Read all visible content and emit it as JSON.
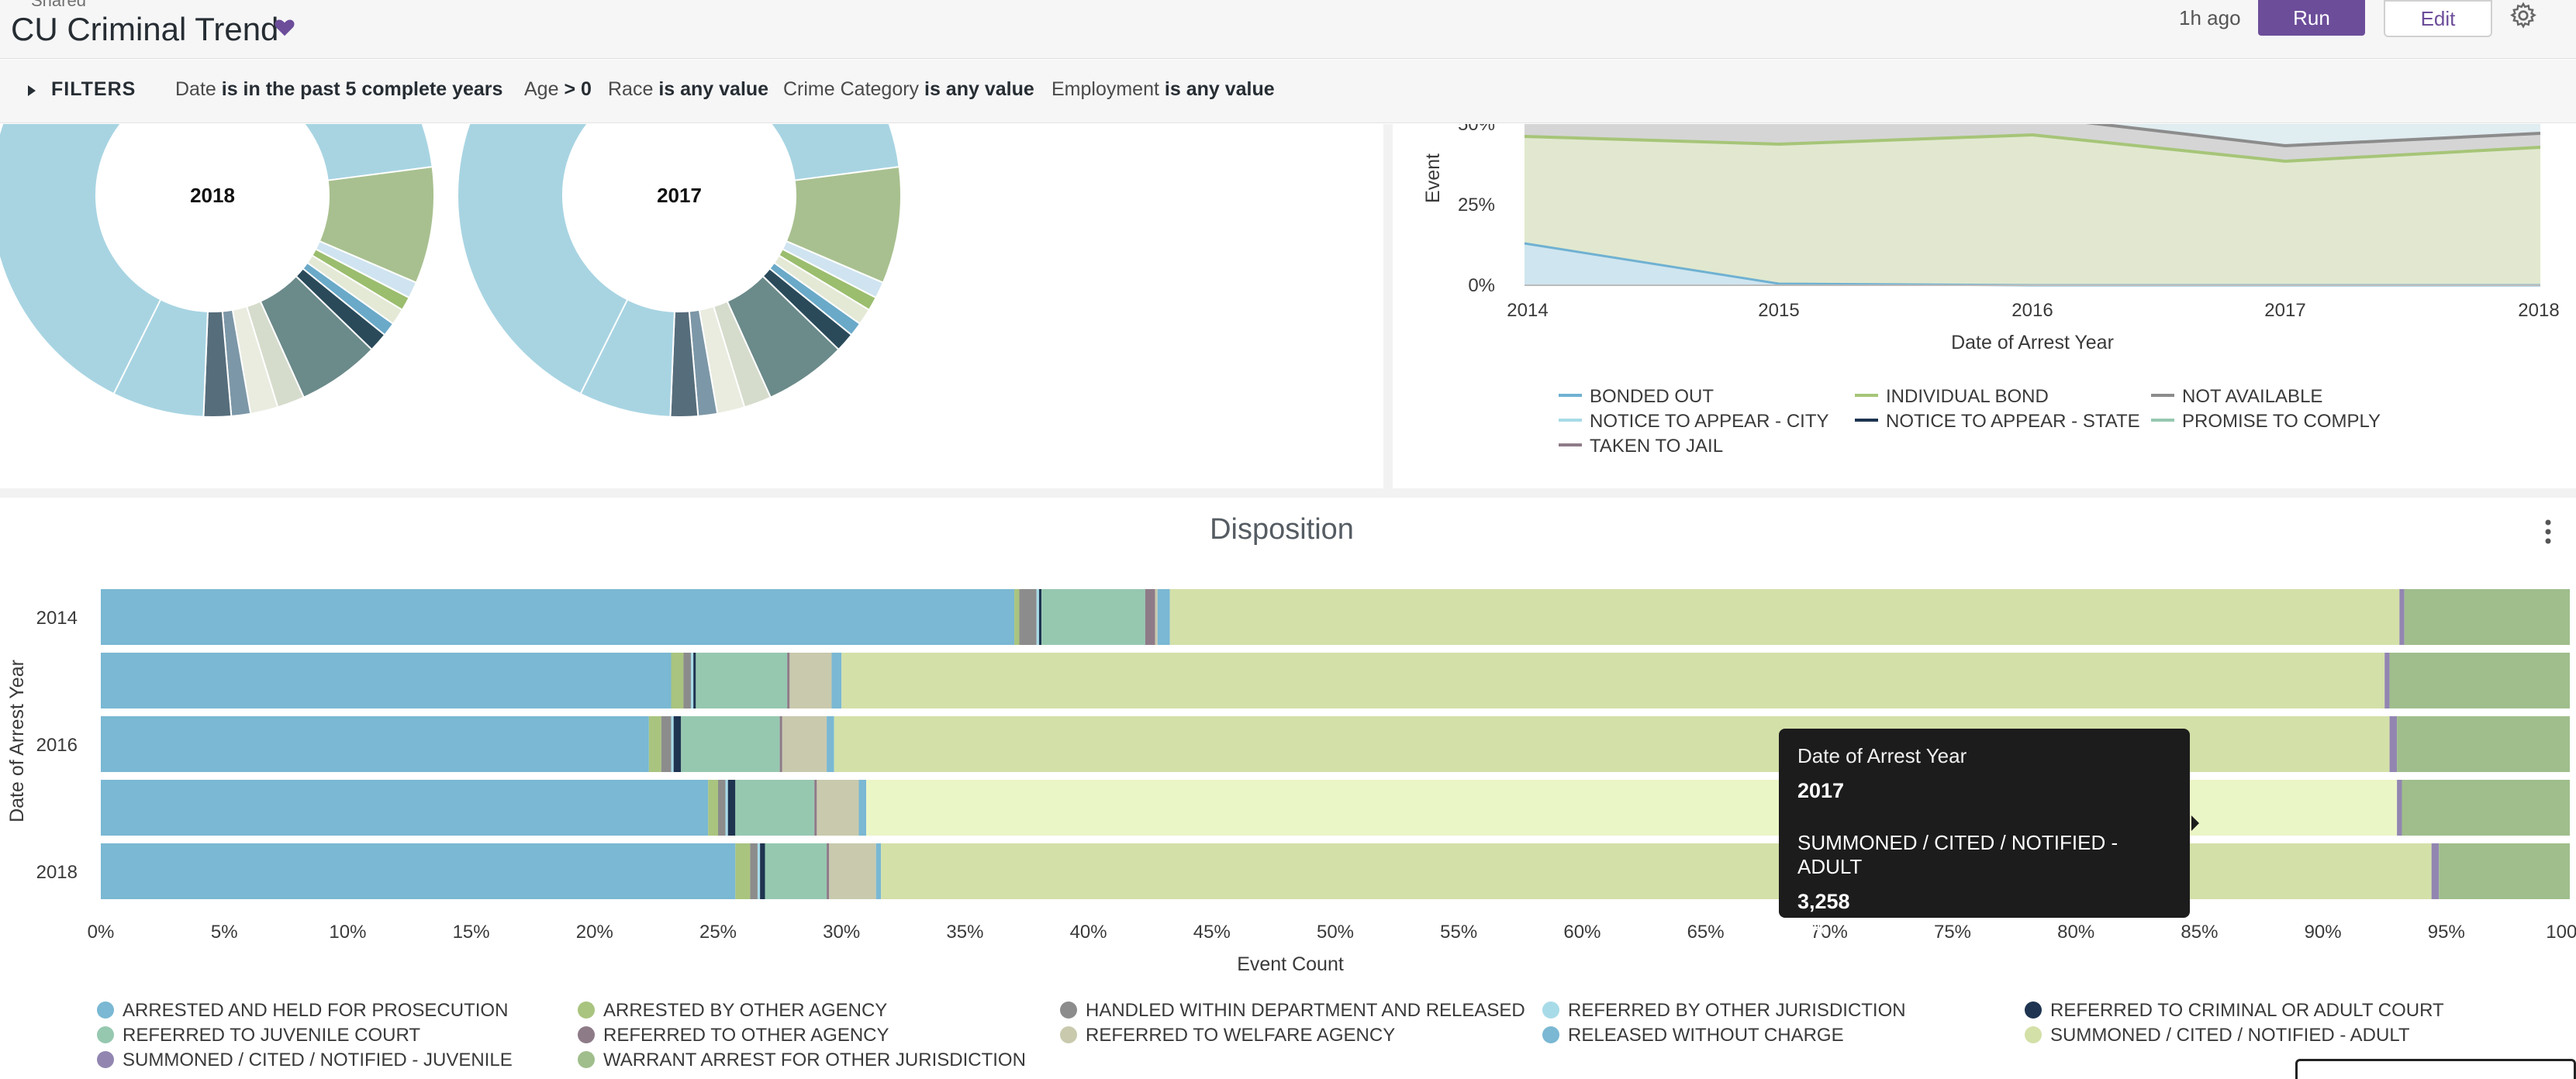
{
  "header": {
    "shared": "Shared",
    "title": "CU Criminal Trend",
    "updated": "1h ago",
    "run_label": "Run",
    "edit_label": "Edit"
  },
  "filters": {
    "toggle_label": "FILTERS",
    "items": [
      {
        "name": "Date",
        "value": "is in the past 5 complete years"
      },
      {
        "name": "Age",
        "value": "> 0"
      },
      {
        "name": "Race",
        "value": "is any value"
      },
      {
        "name": "Crime Category",
        "value": "is any value"
      },
      {
        "name": "Employment",
        "value": "is any value"
      }
    ]
  },
  "colors": {
    "accent": "#6c4d9a",
    "arrested_held": "#7ab8d3",
    "arrested_other": "#a9c47f",
    "handled_released": "#8c8c8c",
    "referred_jurisdiction": "#a8dbe8",
    "referred_criminal": "#1e3450",
    "referred_juvenile": "#96c8b0",
    "referred_other": "#8e7b88",
    "referred_welfare": "#c9c9ad",
    "released_no_charge": "#7ab8d3",
    "summoned_adult": "#d3e0a8",
    "summoned_juvenile": "#9286b1",
    "warrant_arrest": "#a0be8c"
  },
  "donuts": [
    {
      "label": "2018"
    },
    {
      "label": "2017"
    }
  ],
  "area_chart": {
    "y_title": "Event",
    "x_title": "Date of Arrest Year",
    "x_ticks": [
      "2014",
      "2015",
      "2016",
      "2017",
      "2018"
    ],
    "y_ticks": [
      "0%",
      "25%",
      "50%"
    ],
    "legend": [
      {
        "label": "BONDED OUT",
        "color": "#6fb1d2"
      },
      {
        "label": "INDIVIDUAL BOND",
        "color": "#a6c578"
      },
      {
        "label": "NOT AVAILABLE",
        "color": "#8c8c8c"
      },
      {
        "label": "NOTICE TO APPEAR - CITY",
        "color": "#a8dbe8"
      },
      {
        "label": "NOTICE TO APPEAR - STATE",
        "color": "#1e3450"
      },
      {
        "label": "PROMISE TO COMPLY",
        "color": "#96c8b0"
      },
      {
        "label": "TAKEN TO JAIL",
        "color": "#8e7b88"
      }
    ]
  },
  "chart_data": {
    "type": "bar",
    "title": "Disposition",
    "xlabel": "Event Count",
    "ylabel": "Date of Arrest Year",
    "xlim": [
      0,
      100
    ],
    "x_ticks": [
      "0%",
      "5%",
      "10%",
      "15%",
      "20%",
      "25%",
      "30%",
      "35%",
      "40%",
      "45%",
      "50%",
      "55%",
      "60%",
      "65%",
      "70%",
      "75%",
      "80%",
      "85%",
      "90%",
      "95%",
      "100%"
    ],
    "y_tick_labels": [
      "2014",
      "2016",
      "2018"
    ],
    "categories": [
      "2014",
      "2015",
      "2016",
      "2017",
      "2018"
    ],
    "stacked_percent": true,
    "series": [
      {
        "name": "ARRESTED AND HELD FOR PROSECUTION",
        "values": [
          37.0,
          23.1,
          22.2,
          24.6,
          25.7
        ]
      },
      {
        "name": "ARRESTED BY OTHER AGENCY",
        "values": [
          0.2,
          0.5,
          0.5,
          0.4,
          0.6
        ]
      },
      {
        "name": "HANDLED WITHIN DEPARTMENT AND RELEASED",
        "values": [
          0.7,
          0.3,
          0.4,
          0.3,
          0.3
        ]
      },
      {
        "name": "REFERRED BY OTHER JURISDICTION",
        "values": [
          0.1,
          0.1,
          0.1,
          0.1,
          0.1
        ]
      },
      {
        "name": "REFERRED TO CRIMINAL OR ADULT COURT",
        "values": [
          0.1,
          0.1,
          0.3,
          0.3,
          0.2
        ]
      },
      {
        "name": "REFERRED TO JUVENILE COURT",
        "values": [
          4.2,
          3.7,
          4.0,
          3.2,
          2.5
        ]
      },
      {
        "name": "REFERRED TO OTHER AGENCY",
        "values": [
          0.4,
          0.1,
          0.1,
          0.1,
          0.1
        ]
      },
      {
        "name": "REFERRED TO WELFARE AGENCY",
        "values": [
          0.1,
          1.7,
          1.8,
          1.7,
          1.9
        ]
      },
      {
        "name": "RELEASED WITHOUT CHARGE",
        "values": [
          0.5,
          0.4,
          0.3,
          0.3,
          0.2
        ]
      },
      {
        "name": "SUMMONED / CITED / NOTIFIED - ADULT",
        "values": [
          49.8,
          62.5,
          63.0,
          62.0,
          62.8
        ]
      },
      {
        "name": "SUMMONED / CITED / NOTIFIED - JUVENILE",
        "values": [
          0.2,
          0.2,
          0.3,
          0.2,
          0.3
        ]
      },
      {
        "name": "WARRANT ARREST FOR OTHER JURISDICTION",
        "values": [
          6.7,
          7.3,
          7.0,
          6.8,
          5.3
        ]
      }
    ],
    "tooltip": {
      "field": "Date of Arrest Year",
      "year": "2017",
      "series": "SUMMONED / CITED / NOTIFIED - ADULT",
      "count": "3,258",
      "percent": "62%"
    }
  }
}
